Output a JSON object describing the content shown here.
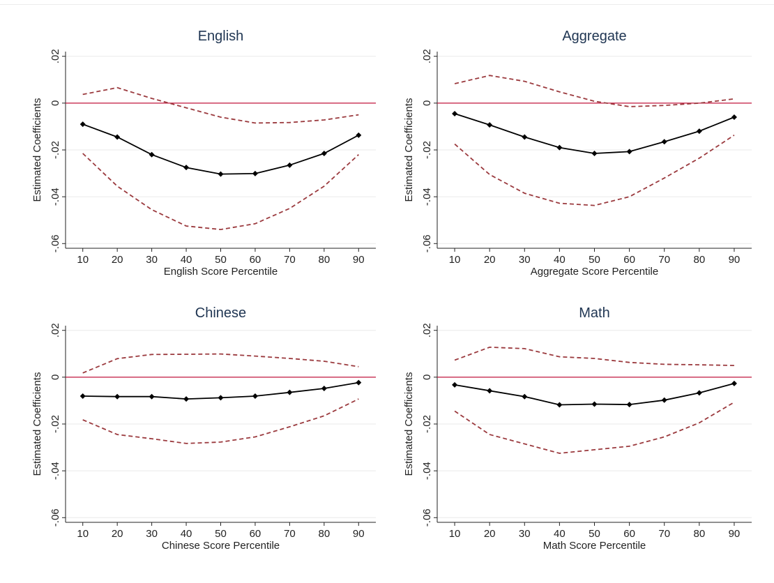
{
  "colors": {
    "estimate": "#000000",
    "ci": "#9b3a3e",
    "zero_line": "#c0143c",
    "grid": "#eaeaea",
    "title": "#1f3552",
    "axis": "#222222"
  },
  "shared": {
    "ylabel": "Estimated Coefficients",
    "x_ticks": [
      "10",
      "20",
      "30",
      "40",
      "50",
      "60",
      "70",
      "80",
      "90"
    ],
    "y_ticks": [
      {
        "value": 0.02,
        "label": ".02"
      },
      {
        "value": 0,
        "label": "0"
      },
      {
        "value": -0.02,
        "label": "-.02"
      },
      {
        "value": -0.04,
        "label": "-.04"
      },
      {
        "value": -0.06,
        "label": "-.06"
      }
    ]
  },
  "chart_data": [
    {
      "type": "line",
      "title": "English",
      "xlabel": "English Score Percentile",
      "ylabel": "Estimated Coefficients",
      "x": [
        10,
        20,
        30,
        40,
        50,
        60,
        70,
        80,
        90
      ],
      "ylim": [
        -0.062,
        0.022
      ],
      "xlim": [
        5,
        95
      ],
      "grid": true,
      "reference_line": 0,
      "series": [
        {
          "role": "estimate",
          "style": "solid-diamond",
          "values": [
            -0.009,
            -0.0145,
            -0.022,
            -0.0275,
            -0.0303,
            -0.0301,
            -0.0265,
            -0.0215,
            -0.0137
          ]
        },
        {
          "role": "upper",
          "style": "dashed",
          "values": [
            0.0037,
            0.0066,
            0.002,
            -0.002,
            -0.006,
            -0.0085,
            -0.0083,
            -0.0072,
            -0.005
          ]
        },
        {
          "role": "lower",
          "style": "dashed",
          "values": [
            -0.0215,
            -0.0355,
            -0.0455,
            -0.0525,
            -0.054,
            -0.0515,
            -0.045,
            -0.0355,
            -0.022
          ]
        }
      ]
    },
    {
      "type": "line",
      "title": "Aggregate",
      "xlabel": "Aggregate Score Percentile",
      "ylabel": "Estimated Coefficients",
      "x": [
        10,
        20,
        30,
        40,
        50,
        60,
        70,
        80,
        90
      ],
      "ylim": [
        -0.062,
        0.022
      ],
      "xlim": [
        5,
        95
      ],
      "grid": true,
      "reference_line": 0,
      "series": [
        {
          "role": "estimate",
          "style": "solid-diamond",
          "values": [
            -0.0045,
            -0.0093,
            -0.0145,
            -0.019,
            -0.0215,
            -0.0207,
            -0.0165,
            -0.012,
            -0.006
          ]
        },
        {
          "role": "upper",
          "style": "dashed",
          "values": [
            0.0083,
            0.0118,
            0.0093,
            0.0048,
            0.0008,
            -0.0015,
            -0.001,
            0.0,
            0.0018
          ]
        },
        {
          "role": "lower",
          "style": "dashed",
          "values": [
            -0.0175,
            -0.0305,
            -0.0385,
            -0.0428,
            -0.0437,
            -0.04,
            -0.032,
            -0.0235,
            -0.0137
          ]
        }
      ]
    },
    {
      "type": "line",
      "title": "Chinese",
      "xlabel": "Chinese Score Percentile",
      "ylabel": "Estimated Coefficients",
      "x": [
        10,
        20,
        30,
        40,
        50,
        60,
        70,
        80,
        90
      ],
      "ylim": [
        -0.062,
        0.022
      ],
      "xlim": [
        5,
        95
      ],
      "grid": true,
      "reference_line": 0,
      "series": [
        {
          "role": "estimate",
          "style": "solid-diamond",
          "values": [
            -0.0081,
            -0.0083,
            -0.0083,
            -0.0093,
            -0.0088,
            -0.0081,
            -0.0065,
            -0.0048,
            -0.0023
          ]
        },
        {
          "role": "upper",
          "style": "dashed",
          "values": [
            0.0018,
            0.0079,
            0.0097,
            0.0098,
            0.0099,
            0.009,
            0.008,
            0.0068,
            0.0045
          ]
        },
        {
          "role": "lower",
          "style": "dashed",
          "values": [
            -0.0182,
            -0.0245,
            -0.0263,
            -0.0283,
            -0.0277,
            -0.0255,
            -0.0212,
            -0.0165,
            -0.0093
          ]
        }
      ]
    },
    {
      "type": "line",
      "title": "Math",
      "xlabel": "Math Score Percentile",
      "ylabel": "Estimated Coefficients",
      "x": [
        10,
        20,
        30,
        40,
        50,
        60,
        70,
        80,
        90
      ],
      "ylim": [
        -0.062,
        0.022
      ],
      "xlim": [
        5,
        95
      ],
      "grid": true,
      "reference_line": 0,
      "series": [
        {
          "role": "estimate",
          "style": "solid-diamond",
          "values": [
            -0.0033,
            -0.0058,
            -0.0083,
            -0.0118,
            -0.0115,
            -0.0117,
            -0.0098,
            -0.0067,
            -0.0027
          ]
        },
        {
          "role": "upper",
          "style": "dashed",
          "values": [
            0.0073,
            0.0128,
            0.0122,
            0.0087,
            0.008,
            0.0063,
            0.0055,
            0.0053,
            0.005
          ]
        },
        {
          "role": "lower",
          "style": "dashed",
          "values": [
            -0.0145,
            -0.0245,
            -0.0285,
            -0.0325,
            -0.031,
            -0.0295,
            -0.0255,
            -0.0195,
            -0.0107
          ]
        }
      ]
    }
  ]
}
